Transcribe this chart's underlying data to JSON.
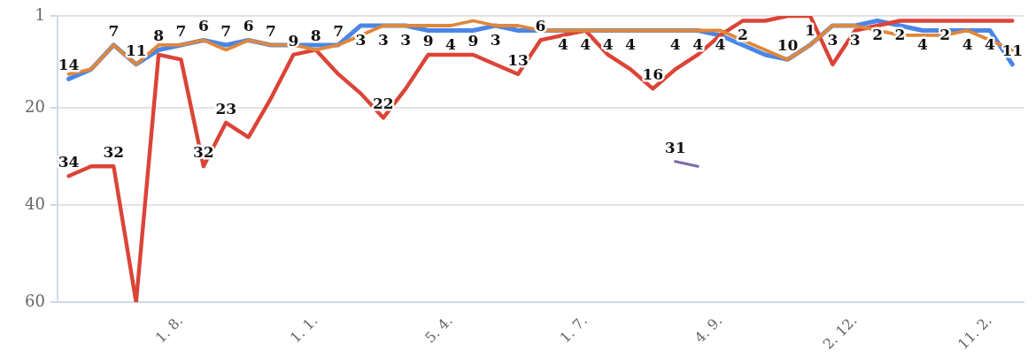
{
  "chart_data": {
    "type": "line",
    "categories": [
      null,
      null,
      null,
      null,
      null,
      "1. 8.",
      null,
      null,
      null,
      null,
      null,
      "1. 1.",
      null,
      null,
      null,
      null,
      null,
      "5. 4.",
      null,
      null,
      null,
      null,
      null,
      "1. 7.",
      null,
      null,
      null,
      null,
      null,
      "4. 9.",
      null,
      null,
      null,
      null,
      null,
      "2. 12.",
      null,
      null,
      null,
      null,
      null,
      "11. 2.",
      null
    ],
    "ylim": [
      60,
      1
    ],
    "yticks": [
      1,
      20,
      40,
      60
    ],
    "grid": "y",
    "legend": false,
    "marker": "none",
    "line_style": "solid",
    "series": [
      {
        "color": "#4a86e8",
        "values": [
          14,
          12,
          7,
          11,
          8,
          7,
          6,
          7,
          6,
          7,
          7,
          7,
          7,
          3,
          3,
          3,
          4,
          4,
          4,
          3,
          4,
          4,
          4,
          4,
          4,
          4,
          4,
          4,
          4,
          5,
          7,
          9,
          10,
          7,
          3,
          3,
          2,
          3,
          4,
          4,
          4,
          4,
          11
        ],
        "value_labels": [
          "14",
          null,
          null,
          null,
          "8",
          null,
          null,
          "7",
          null,
          "7",
          null,
          null,
          "7",
          "3",
          "3",
          "3",
          null,
          "4",
          null,
          "3",
          null,
          null,
          "4",
          "4",
          "4",
          "4",
          null,
          "4",
          "4",
          null,
          null,
          null,
          null,
          null,
          null,
          "3",
          "2",
          null,
          "4",
          null,
          "4",
          "4",
          "11"
        ]
      },
      {
        "color": "#db4437",
        "values": [
          34,
          32,
          32,
          60,
          9,
          10,
          32,
          23,
          26,
          18,
          9,
          8,
          13,
          17,
          22,
          16,
          9,
          9,
          9,
          11,
          13,
          6,
          5,
          4,
          9,
          12,
          16,
          12,
          9,
          5,
          2,
          2,
          1,
          1,
          11,
          4,
          3,
          2,
          2,
          2,
          2,
          2,
          2
        ],
        "value_labels": [
          "34",
          null,
          "32",
          null,
          null,
          null,
          "32",
          "23",
          null,
          null,
          "9",
          "8",
          null,
          null,
          "22",
          null,
          "9",
          null,
          "9",
          null,
          "13",
          "6",
          null,
          null,
          null,
          null,
          "16",
          null,
          null,
          null,
          "2",
          null,
          null,
          "1",
          null,
          null,
          null,
          "2",
          null,
          "2",
          null,
          null,
          null
        ]
      },
      {
        "color": "#e0873b",
        "values": [
          13,
          12,
          7,
          11,
          7,
          7,
          6,
          8,
          6,
          7,
          7,
          8,
          7,
          5,
          3,
          3,
          3,
          3,
          2,
          3,
          3,
          4,
          4,
          4,
          4,
          4,
          4,
          4,
          4,
          4,
          6,
          8,
          10,
          7,
          3,
          3,
          4,
          5,
          5,
          5,
          4,
          6,
          8
        ],
        "value_labels": [
          null,
          null,
          "7",
          "11",
          null,
          "7",
          "6",
          null,
          "6",
          null,
          null,
          null,
          null,
          null,
          null,
          null,
          null,
          null,
          null,
          null,
          null,
          null,
          null,
          null,
          null,
          null,
          null,
          null,
          null,
          "4",
          null,
          null,
          "10",
          null,
          "3",
          null,
          null,
          null,
          null,
          null,
          null,
          null,
          null
        ]
      },
      {
        "color": "#7e6aa8",
        "values": [
          null,
          null,
          null,
          null,
          null,
          null,
          null,
          null,
          null,
          null,
          null,
          null,
          null,
          null,
          null,
          null,
          null,
          null,
          null,
          null,
          null,
          null,
          null,
          null,
          null,
          null,
          null,
          31,
          32,
          null,
          null,
          null,
          null,
          null,
          null,
          null,
          null,
          null,
          null,
          null,
          null,
          null,
          null
        ],
        "value_labels": [
          null,
          null,
          null,
          null,
          null,
          null,
          null,
          null,
          null,
          null,
          null,
          null,
          null,
          null,
          null,
          null,
          null,
          null,
          null,
          null,
          null,
          null,
          null,
          null,
          null,
          null,
          null,
          "31",
          null,
          null,
          null,
          null,
          null,
          null,
          null,
          null,
          null,
          null,
          null,
          null,
          null,
          null,
          null
        ]
      }
    ]
  }
}
